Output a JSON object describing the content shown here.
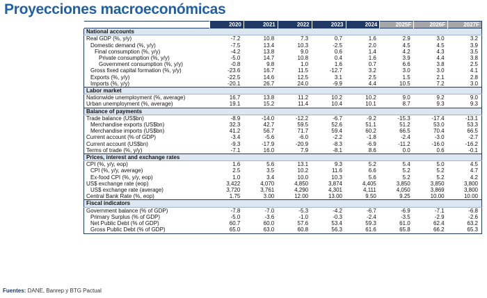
{
  "header": {
    "title": "Proyecciones macroeconómicas"
  },
  "table": {
    "columns": [
      "2020",
      "2021",
      "2022",
      "2023",
      "2024",
      "2025F",
      "2026F",
      "2027F"
    ],
    "sections": [
      {
        "title": "National accounts",
        "rows": [
          {
            "label": "Real GDP (%, y/y)",
            "values": [
              "-7.2",
              "10.8",
              "7.3",
              "0.7",
              "1.6",
              "2.9",
              "3.0",
              "3.2"
            ],
            "rows": [
              {
                "label": "Domestic demand (%, y/y)",
                "values": [
                  "-7.5",
                  "13.4",
                  "10.3",
                  "-2.5",
                  "2.0",
                  "4.5",
                  "4.5",
                  "3.9"
                ],
                "rows": [
                  {
                    "label": "Final consumption  (%, y/y)",
                    "values": [
                      "-4.2",
                      "13.8",
                      "9.0",
                      "0.6",
                      "1.4",
                      "4.2",
                      "4.3",
                      "3.5"
                    ],
                    "rows": [
                      {
                        "label": "Private consumption (%, y/y)",
                        "values": [
                          "-5.0",
                          "14.7",
                          "10.8",
                          "0.4",
                          "1.6",
                          "3.9",
                          "4.4",
                          "3.8"
                        ]
                      },
                      {
                        "label": "Government consumption (%, y/y)",
                        "values": [
                          "-0.8",
                          "9.8",
                          "1.0",
                          "1.6",
                          "0.7",
                          "6.6",
                          "3.8",
                          "2.5"
                        ]
                      }
                    ]
                  }
                ]
              },
              {
                "label": "Gross fixed capital formation (%, y/y)",
                "values": [
                  "-23.6",
                  "16.7",
                  "11.5",
                  "-12.7",
                  "3.2",
                  "3.0",
                  "3.0",
                  "4.1"
                ]
              },
              {
                "label": "Exports (%, y/y)",
                "values": [
                  "-22.5",
                  "14.6",
                  "12.5",
                  "3.1",
                  "2.5",
                  "1.5",
                  "2.1",
                  "2.8"
                ]
              },
              {
                "label": "Imports (%, y/y)",
                "values": [
                  "-20.1",
                  "26.7",
                  "24.0",
                  "-9.9",
                  "4.4",
                  "10.5",
                  "7.2",
                  "3.0"
                ]
              }
            ]
          }
        ]
      },
      {
        "title": "Labor market",
        "rows": [
          {
            "label": "Nationwide unemployment (%, average)",
            "values": [
              "16.7",
              "13.8",
              "11.2",
              "10.2",
              "10.2",
              "9.0",
              "9.2",
              "9.0"
            ]
          },
          {
            "label": "Urban unemployment (%, average)",
            "values": [
              "19.1",
              "15.2",
              "11.4",
              "10.4",
              "10.1",
              "8.7",
              "9.3",
              "9.3"
            ]
          }
        ]
      },
      {
        "title": "Balance of payments",
        "rows": [
          {
            "label": "Trade balance (US$bn)",
            "values": [
              "-8.9",
              "-14.0",
              "-12.2",
              "-6.7",
              "-9.2",
              "-15.3",
              "-17.4",
              "-13.1"
            ],
            "rows": [
              {
                "label": "Merchandise exports (US$bn)",
                "values": [
                  "32.3",
                  "42.7",
                  "59.5",
                  "52.6",
                  "51.1",
                  "51.2",
                  "53.0",
                  "53.3"
                ]
              },
              {
                "label": "Merchandise imports (US$bn)",
                "values": [
                  "41.2",
                  "56.7",
                  "71.7",
                  "59.4",
                  "60.2",
                  "66.5",
                  "70.4",
                  "66.5"
                ]
              }
            ]
          },
          {
            "label": "Current account (% of GDP)",
            "values": [
              "-3.4",
              "-5.6",
              "-6.0",
              "-2.2",
              "-1.8",
              "-2.4",
              "-3.0",
              "-2.7"
            ]
          },
          {
            "label": "Current account (US$bn)",
            "values": [
              "-9.3",
              "-17.9",
              "-20.9",
              "-8.3",
              "-6.9",
              "-11.2",
              "-16.0",
              "-16.2"
            ]
          },
          {
            "label": "Terms of trade (%, y/y)",
            "values": [
              "-7.1",
              "16.0",
              "7.9",
              "-8.1",
              "8.6",
              "0.0",
              "0.6",
              "-0.1"
            ]
          }
        ]
      },
      {
        "title": "Prices, interest and exchange rates",
        "rows": [
          {
            "label": "CPI (%, y/y, eop)",
            "values": [
              "1.6",
              "5.6",
              "13.1",
              "9.3",
              "5.2",
              "5.4",
              "5.0",
              "4.5"
            ],
            "rows": [
              {
                "label": "CPI (%, y/y, average)",
                "values": [
                  "2.5",
                  "3.5",
                  "10.2",
                  "11.6",
                  "6.6",
                  "5.2",
                  "5.2",
                  "4.7"
                ]
              },
              {
                "label": "Ex-food CPI (%, y/y, eop)",
                "values": [
                  "1.0",
                  "3.4",
                  "10.0",
                  "10.3",
                  "5.6",
                  "5.2",
                  "5.2",
                  "4.2"
                ]
              }
            ]
          },
          {
            "label": "US$ exchange rate (eop)",
            "values": [
              "3,422",
              "4,070",
              "4,850",
              "3,874",
              "4,405",
              "3,850",
              "3,850",
              "3,800"
            ],
            "rows": [
              {
                "label": "US$ exchange rate (average)",
                "values": [
                  "3,720",
                  "3,761",
                  "4,290",
                  "4,301",
                  "4,111",
                  "4,050",
                  "3,869",
                  "3,800"
                ]
              }
            ]
          },
          {
            "label": "Central Bank Rate (%, eop)",
            "values": [
              "1.75",
              "3.00",
              "12.00",
              "13.00",
              "9.50",
              "9.25",
              "10.00",
              "10.00"
            ]
          }
        ]
      },
      {
        "title": "Fiscal indicators",
        "rows": [
          {
            "label": "Government balance (% of GDP)",
            "values": [
              "-7.8",
              "-7.0",
              "-5.3",
              "-4.2",
              "-6.7",
              "-6.9",
              "-7.1",
              "-6.8"
            ],
            "rows": [
              {
                "label": "Primary Surplus (% of GDP)",
                "values": [
                  "-5.0",
                  "-3.6",
                  "-1.0",
                  "-0.3",
                  "-2.4",
                  "-3.5",
                  "-2.9",
                  "-2.6"
                ]
              },
              {
                "label": "Net Public Debt (% of GDP)",
                "values": [
                  "60.7",
                  "60.0",
                  "57.6",
                  "53.4",
                  "59.3",
                  "61.0",
                  "62.4",
                  "63.2"
                ]
              },
              {
                "label": "Gross Public Debt (% of GDP)",
                "values": [
                  "65.0",
                  "63.0",
                  "60.8",
                  "56.3",
                  "61.6",
                  "65.8",
                  "66.2",
                  "65.3"
                ]
              }
            ]
          }
        ]
      }
    ]
  },
  "footer": {
    "source_label": "Fuentes:",
    "source": "DANE, Banrep y BTG Pactual"
  }
}
